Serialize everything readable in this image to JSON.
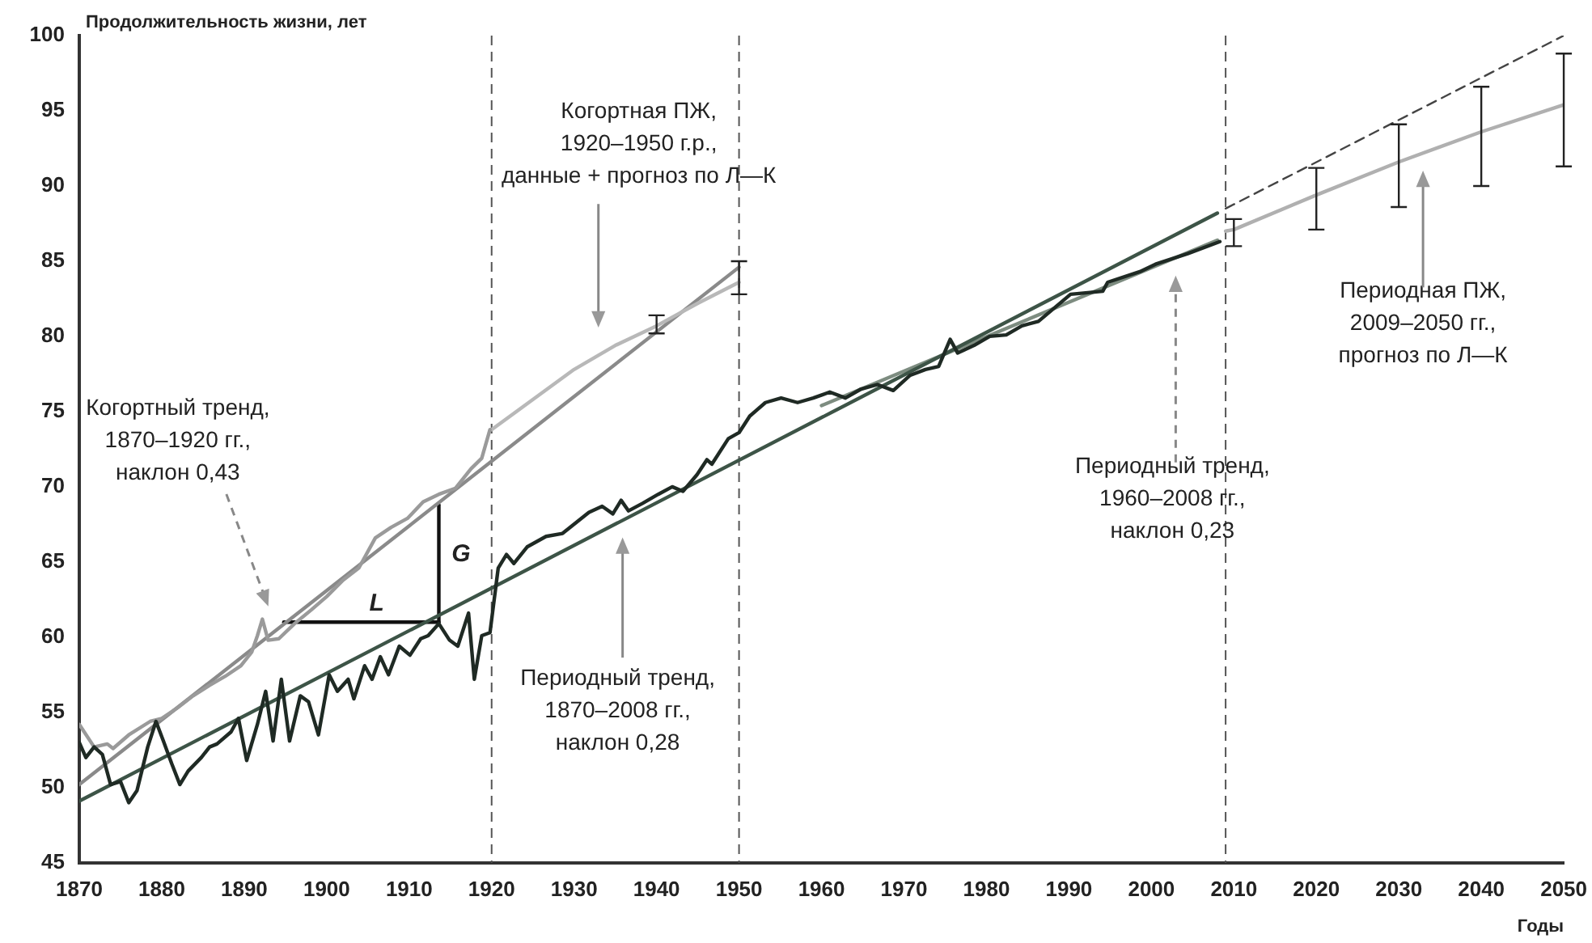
{
  "chart_data": {
    "type": "line",
    "ylabel": "Продолжительность жизни, лет",
    "xlabel": "Годы",
    "xlim": [
      1870,
      2050
    ],
    "xticks": [
      1870,
      1880,
      1890,
      1900,
      1910,
      1920,
      1930,
      1940,
      1950,
      1960,
      1970,
      1980,
      1990,
      2000,
      2010,
      2020,
      2030,
      2040,
      2050
    ],
    "ylim": [
      45,
      100
    ],
    "yticks": [
      45,
      50,
      55,
      60,
      65,
      70,
      75,
      80,
      85,
      90,
      95,
      100
    ],
    "grid": false,
    "legend": false,
    "marker": "none",
    "series": [
      {
        "type": "line",
        "color": "#1f2a24",
        "line_style": "solid",
        "x": [
          1870,
          1870.8,
          1871.8,
          1872.8,
          1873.8,
          1875,
          1876,
          1877,
          1878.3,
          1879.3,
          1880.2,
          1881.2,
          1882.2,
          1883.2,
          1884.8,
          1885.8,
          1886.7,
          1888.4,
          1889.3,
          1890.3,
          1891.6,
          1892.6,
          1893.5,
          1894.5,
          1895.5,
          1896.8,
          1897.8,
          1899,
          1900.3,
          1901.3,
          1902.6,
          1903.3,
          1904.6,
          1905.5,
          1906.5,
          1907.5,
          1908.8,
          1910.1,
          1911.4,
          1912.3,
          1913.6,
          1914.9,
          1915.9,
          1917.2,
          1917.9,
          1918.8,
          1919.8,
          1920.8,
          1921.8,
          1922.7,
          1924.3,
          1926.6,
          1928.6,
          1931.8,
          1933.4,
          1934.7,
          1935.7,
          1936.6,
          1938.3,
          1940.2,
          1941.9,
          1943.2,
          1944.9,
          1946.1,
          1946.7,
          1948.7,
          1950,
          1951.3,
          1953.2,
          1955.1,
          1957.1,
          1959,
          1961,
          1962.9,
          1964.8,
          1966.8,
          1968.7,
          1970.7,
          1972.6,
          1974.2,
          1975.6,
          1976.5,
          1978.5,
          1980.4,
          1982.4,
          1984.3,
          1986.3,
          1990.2,
          1994.1,
          1994.7,
          1998.6,
          2000.5,
          2004.4,
          2008.3
        ],
        "values": [
          53.0,
          52.0,
          52.7,
          52.2,
          50.2,
          50.4,
          49.0,
          49.8,
          52.7,
          54.4,
          53.1,
          51.6,
          50.2,
          51.1,
          52.0,
          52.7,
          52.9,
          53.7,
          54.6,
          51.8,
          54.2,
          56.4,
          53.1,
          57.2,
          53.1,
          56.1,
          55.7,
          53.5,
          57.5,
          56.4,
          57.2,
          55.9,
          58.1,
          57.2,
          58.7,
          57.5,
          59.4,
          58.8,
          59.9,
          60.1,
          60.9,
          59.8,
          59.4,
          61.6,
          57.2,
          60.1,
          60.3,
          64.6,
          65.5,
          64.9,
          66.0,
          66.7,
          66.9,
          68.3,
          68.7,
          68.2,
          69.1,
          68.4,
          68.9,
          69.5,
          70.0,
          69.7,
          70.8,
          71.8,
          71.5,
          73.2,
          73.6,
          74.7,
          75.6,
          75.9,
          75.6,
          75.9,
          76.3,
          75.9,
          76.5,
          76.8,
          76.4,
          77.4,
          77.8,
          78.0,
          79.8,
          78.9,
          79.4,
          80.0,
          80.1,
          80.7,
          81.0,
          82.8,
          83.0,
          83.6,
          84.3,
          84.8,
          85.5,
          86.3
        ]
      },
      {
        "type": "line",
        "color": "#3d5447",
        "line_style": "solid",
        "x": [
          1870,
          2008
        ],
        "values": [
          49.1,
          88.2
        ]
      },
      {
        "type": "line",
        "color": "#444444",
        "line_style": "dashed",
        "x": [
          2009,
          2050
        ],
        "values": [
          88.5,
          100
        ]
      },
      {
        "type": "line",
        "color": "#7d8c80",
        "line_style": "solid",
        "x": [
          1960,
          2008
        ],
        "values": [
          75.4,
          86.4
        ]
      },
      {
        "type": "line",
        "color": "#9a9a9a",
        "line_style": "solid",
        "x": [
          1870,
          1871.8,
          1873.4,
          1874.1,
          1876,
          1878.6,
          1880,
          1881.9,
          1883.8,
          1885.8,
          1887.7,
          1889.6,
          1890.9,
          1891.6,
          1892.2,
          1892.9,
          1894.2,
          1896.1,
          1898.1,
          1900,
          1902,
          1903.9,
          1905.9,
          1907.8,
          1909.8,
          1911.7,
          1913.6,
          1915.6,
          1917.5,
          1918.8,
          1919.8
        ],
        "values": [
          54.2,
          52.7,
          52.9,
          52.6,
          53.5,
          54.4,
          54.6,
          55.3,
          56.1,
          56.8,
          57.4,
          58.1,
          59.0,
          60.1,
          61.2,
          59.8,
          59.9,
          60.9,
          61.8,
          62.7,
          63.8,
          64.6,
          66.6,
          67.3,
          67.9,
          69.0,
          69.5,
          69.9,
          71.2,
          71.9,
          73.8
        ]
      },
      {
        "type": "line",
        "color": "#b8b8b8",
        "line_style": "solid",
        "x": [
          1920,
          1925,
          1930,
          1935,
          1940,
          1945,
          1950
        ],
        "values": [
          73.8,
          75.8,
          77.8,
          79.4,
          80.7,
          82.2,
          83.6
        ],
        "errors": [
          null,
          null,
          null,
          null,
          [
            80.2,
            81.4
          ],
          null,
          [
            82.8,
            85.0
          ]
        ]
      },
      {
        "type": "line",
        "color": "#8a8a8a",
        "line_style": "solid",
        "x": [
          1870,
          1950
        ],
        "values": [
          50.2,
          84.6
        ]
      },
      {
        "type": "line",
        "color": "#b0b0b0",
        "line_style": "solid",
        "x": [
          2009,
          2010,
          2020,
          2030,
          2040,
          2050
        ],
        "values": [
          87.0,
          87.1,
          89.4,
          91.6,
          93.6,
          95.4
        ],
        "errors": [
          null,
          [
            86.0,
            87.8
          ],
          [
            87.1,
            91.2
          ],
          [
            88.6,
            94.1
          ],
          [
            90.0,
            96.6
          ],
          [
            91.3,
            98.8
          ]
        ]
      },
      {
        "type": "line",
        "color": "#111111",
        "line_style": "solid",
        "x": [
          1894.8,
          1913.6
        ],
        "values": [
          61.0,
          61.0
        ]
      },
      {
        "type": "line",
        "color": "#111111",
        "line_style": "solid",
        "x": [
          1913.6,
          1913.6
        ],
        "values": [
          61.0,
          68.8
        ]
      }
    ],
    "ref_lines": [
      {
        "axis": "x",
        "value": 1920,
        "color": "#555555",
        "line_style": "dashed"
      },
      {
        "axis": "x",
        "value": 1950,
        "color": "#555555",
        "line_style": "dashed"
      },
      {
        "axis": "x",
        "value": 2009,
        "color": "#555555",
        "line_style": "dashed"
      }
    ],
    "annotations": [
      "Когортный тренд,\n1870–1920 гг.,\nнаклон 0,43",
      "Когортная ПЖ,\n1920–1950 г.р.,\nданные + прогноз по Л—К",
      "Периодный тренд,\n1870–2008 гг.,\nнаклон 0,28",
      "Периодный тренд,\n1960–2008 гг.,\nнаклон 0,23",
      "Периодная ПЖ,\n2009–2050 гг.,\nпрогноз по Л—К",
      "L",
      "G"
    ]
  }
}
